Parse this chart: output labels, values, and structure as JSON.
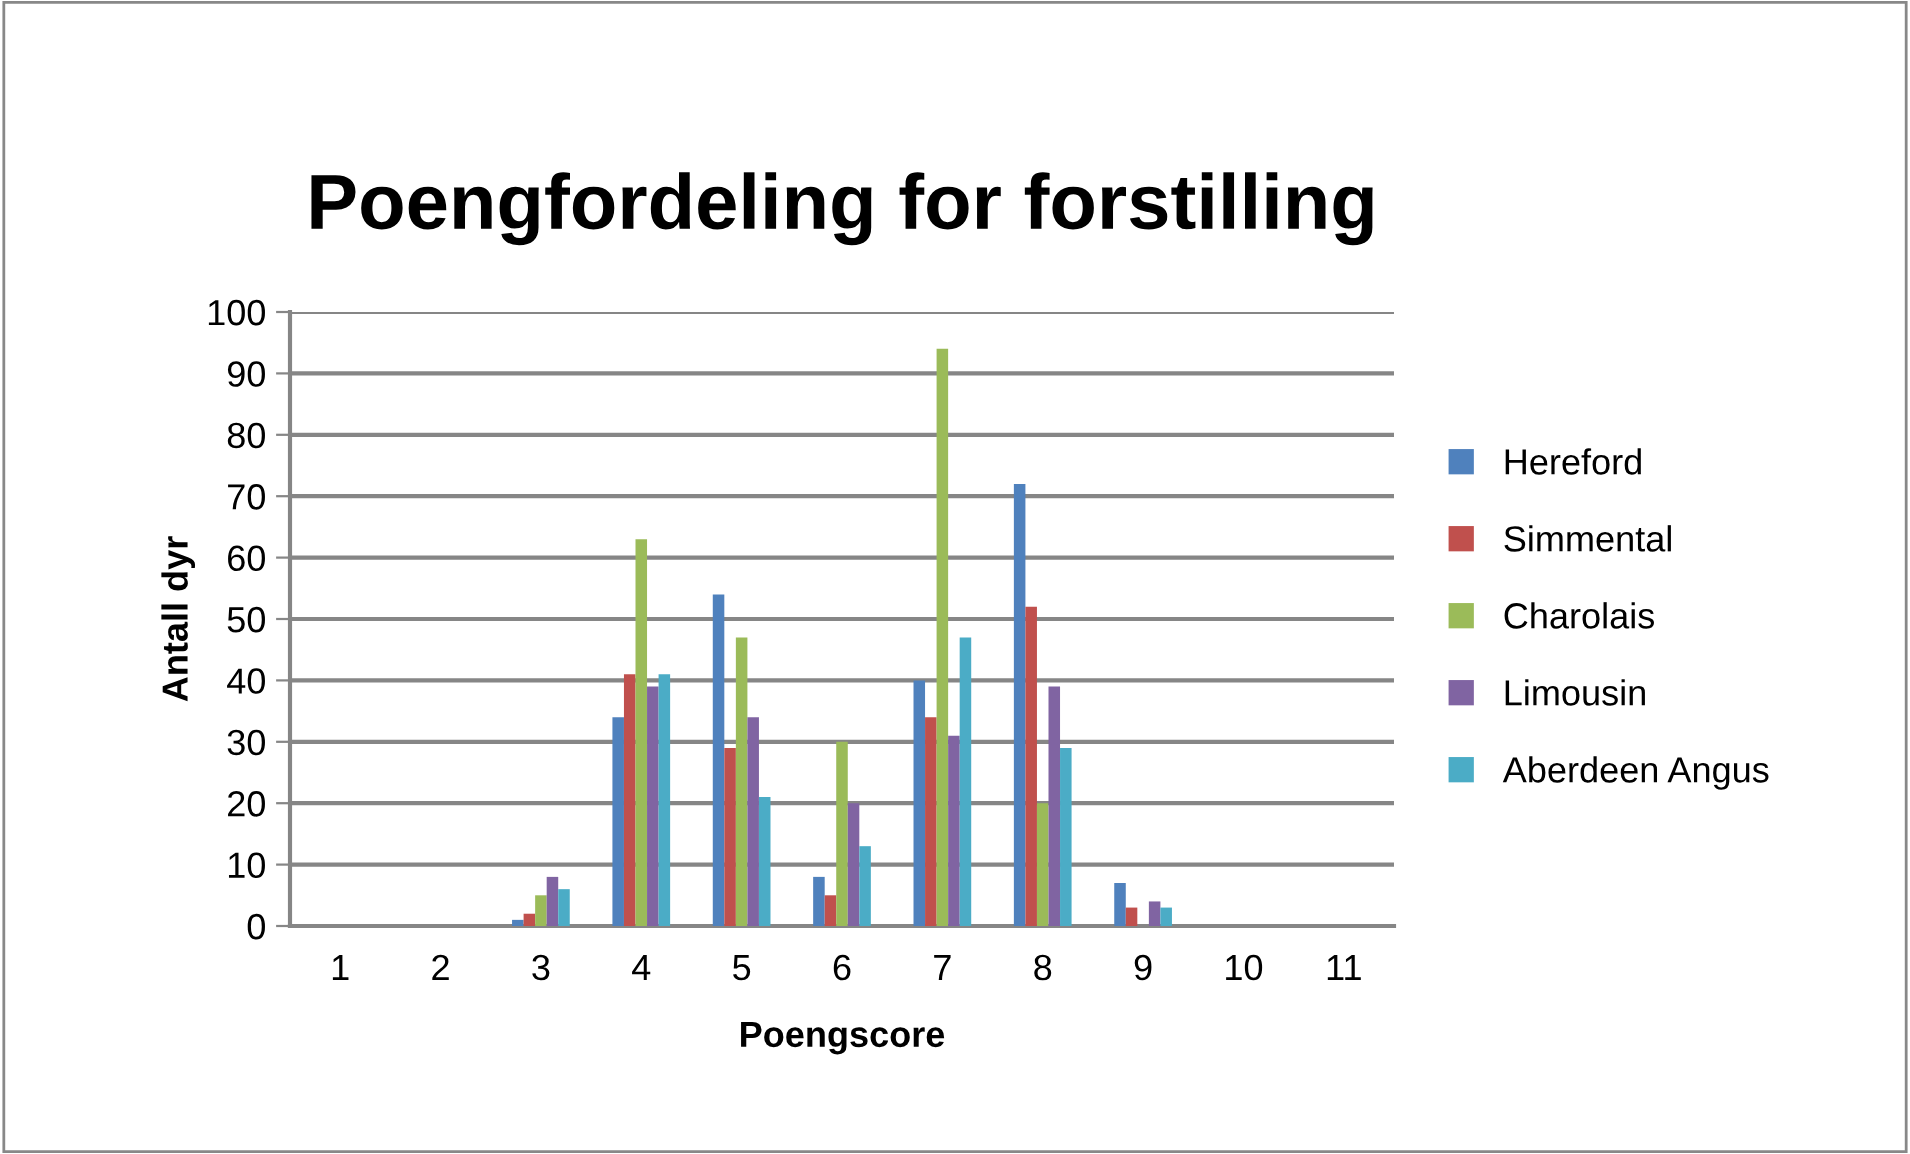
{
  "chart_data": {
    "type": "bar",
    "title": "Poengfordeling for forstilling",
    "xlabel": "Poengscore",
    "ylabel": "Antall dyr",
    "categories": [
      "1",
      "2",
      "3",
      "4",
      "5",
      "6",
      "7",
      "8",
      "9",
      "10",
      "11"
    ],
    "series": [
      {
        "name": "Hereford",
        "color": "#4f81bd",
        "values": [
          0,
          0,
          1,
          34,
          54,
          8,
          40,
          72,
          7,
          0,
          0
        ]
      },
      {
        "name": "Simmental",
        "color": "#c0504d",
        "values": [
          0,
          0,
          2,
          41,
          29,
          5,
          34,
          52,
          3,
          0,
          0
        ]
      },
      {
        "name": "Charolais",
        "color": "#9bbb59",
        "values": [
          0,
          0,
          5,
          63,
          47,
          30,
          94,
          20,
          0,
          0,
          0
        ]
      },
      {
        "name": "Limousin",
        "color": "#8064a2",
        "values": [
          0,
          0,
          8,
          39,
          34,
          20,
          31,
          39,
          4,
          0,
          0
        ]
      },
      {
        "name": "Aberdeen Angus",
        "color": "#4bacc6",
        "values": [
          0,
          0,
          6,
          41,
          21,
          13,
          47,
          29,
          3,
          0,
          0
        ]
      }
    ],
    "ylim": [
      0,
      100
    ],
    "yticks": [
      0,
      10,
      20,
      30,
      40,
      50,
      60,
      70,
      80,
      90,
      100
    ],
    "grid": "y",
    "legend": "right"
  }
}
